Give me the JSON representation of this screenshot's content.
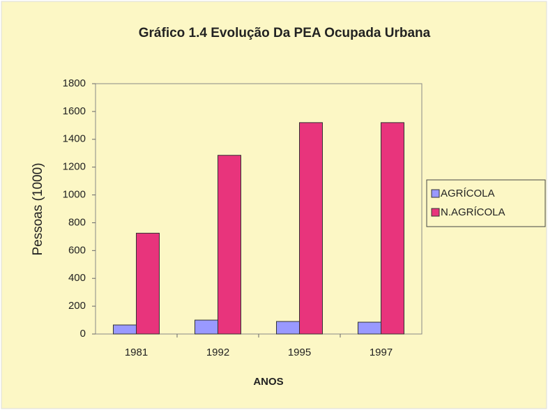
{
  "chart_data": {
    "type": "bar",
    "title": "Gráfico 1.4 Evolução Da PEA Ocupada Urbana",
    "x_label": "ANOS",
    "y_label": "Pessoas (1000)",
    "categories": [
      "1981",
      "1992",
      "1995",
      "1997"
    ],
    "series": [
      {
        "name": "AGRÍCOLA",
        "color": "#9999ff",
        "values": [
          65,
          100,
          90,
          85
        ]
      },
      {
        "name": "N.AGRÍCOLA",
        "color": "#e8347c",
        "values": [
          725,
          1285,
          1520,
          1520
        ]
      }
    ],
    "ylim": [
      0,
      1800
    ],
    "yticks": [
      0,
      200,
      400,
      600,
      800,
      1000,
      1200,
      1400,
      1600,
      1800
    ],
    "grid": false,
    "legend": "right"
  }
}
